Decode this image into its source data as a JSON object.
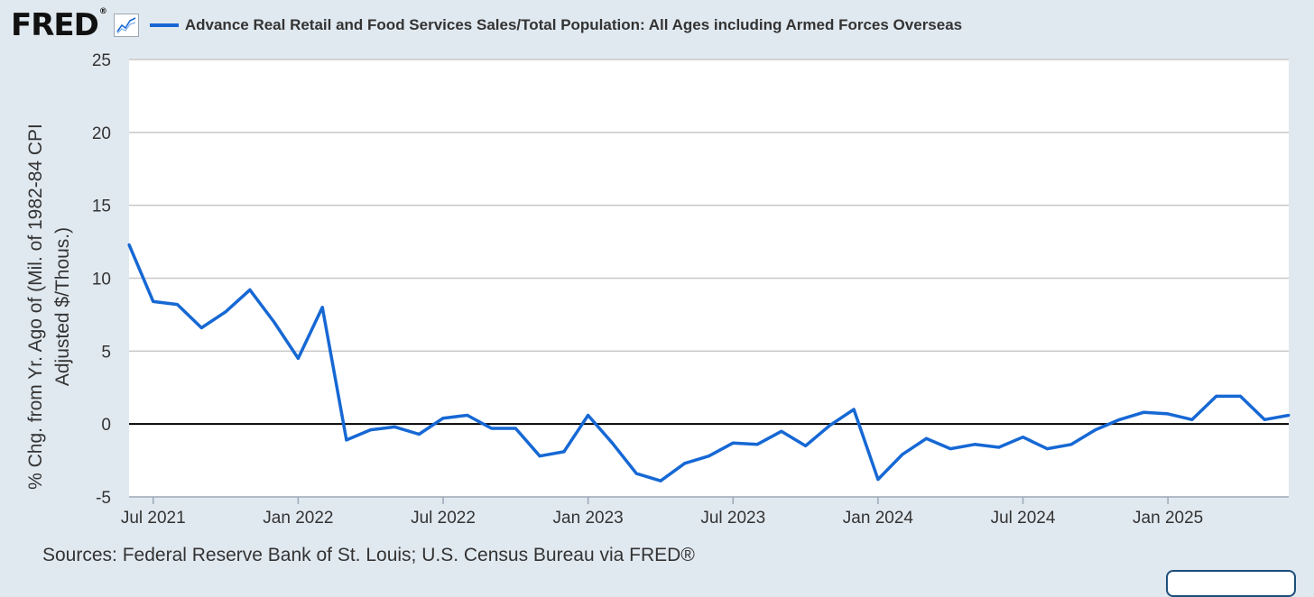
{
  "header": {
    "logo_text": "FRED",
    "logo_mark": "®",
    "graph_icon": "line-chart-icon",
    "series_title": "Advance Real Retail and Food Services Sales/Total Population: All Ages including Armed Forces Overseas"
  },
  "colors": {
    "line": "#1668d4",
    "background": "#e1e9f0",
    "plot": "#ffffff",
    "grid": "#c8c8c8",
    "zero_line": "#000000"
  },
  "chart_data": {
    "type": "line",
    "title": "Advance Real Retail and Food Services Sales/Total Population: All Ages including Armed Forces Overseas",
    "ylabel": "% Chg. from Yr. Ago of (Mil. of 1982-84 CPI Adjusted $/Thous.)",
    "ylabel_lines": [
      "% Chg. from Yr. Ago of (Mil. of 1982-84 CPI",
      "Adjusted $/Thous.)"
    ],
    "xlabel": "",
    "ylim": [
      -5,
      25
    ],
    "yticks": [
      -5,
      0,
      5,
      10,
      15,
      20,
      25
    ],
    "xtick_labels": [
      "Jul 2021",
      "Jan 2022",
      "Jul 2022",
      "Jan 2023",
      "Jul 2023",
      "Jan 2024",
      "Jul 2024",
      "Jan 2025"
    ],
    "xtick_indices": [
      1,
      7,
      13,
      19,
      25,
      31,
      37,
      43
    ],
    "x_start": "Jun 2021",
    "x_end": "Aug 2025",
    "series": [
      {
        "name": "Advance Real Retail and Food Services Sales/Total Population: All Ages including Armed Forces Overseas",
        "values": [
          12.3,
          8.4,
          8.2,
          6.6,
          7.7,
          9.2,
          7.0,
          4.5,
          8.0,
          -1.1,
          -0.4,
          -0.2,
          -0.7,
          0.4,
          0.6,
          -0.3,
          -0.3,
          -2.2,
          -1.9,
          0.6,
          -1.3,
          -3.4,
          -3.9,
          -2.7,
          -2.2,
          -1.3,
          -1.4,
          -0.5,
          -1.5,
          -0.1,
          1.0,
          -3.8,
          -2.1,
          -1.0,
          -1.7,
          -1.4,
          -1.6,
          -0.9,
          -1.7,
          -1.4,
          -0.4,
          0.3,
          0.8,
          0.7,
          0.3,
          1.9,
          1.9,
          0.3,
          0.6
        ]
      }
    ]
  },
  "footer": {
    "sources": "Sources: Federal Reserve Bank of St. Louis; U.S. Census Bureau via FRED®"
  }
}
